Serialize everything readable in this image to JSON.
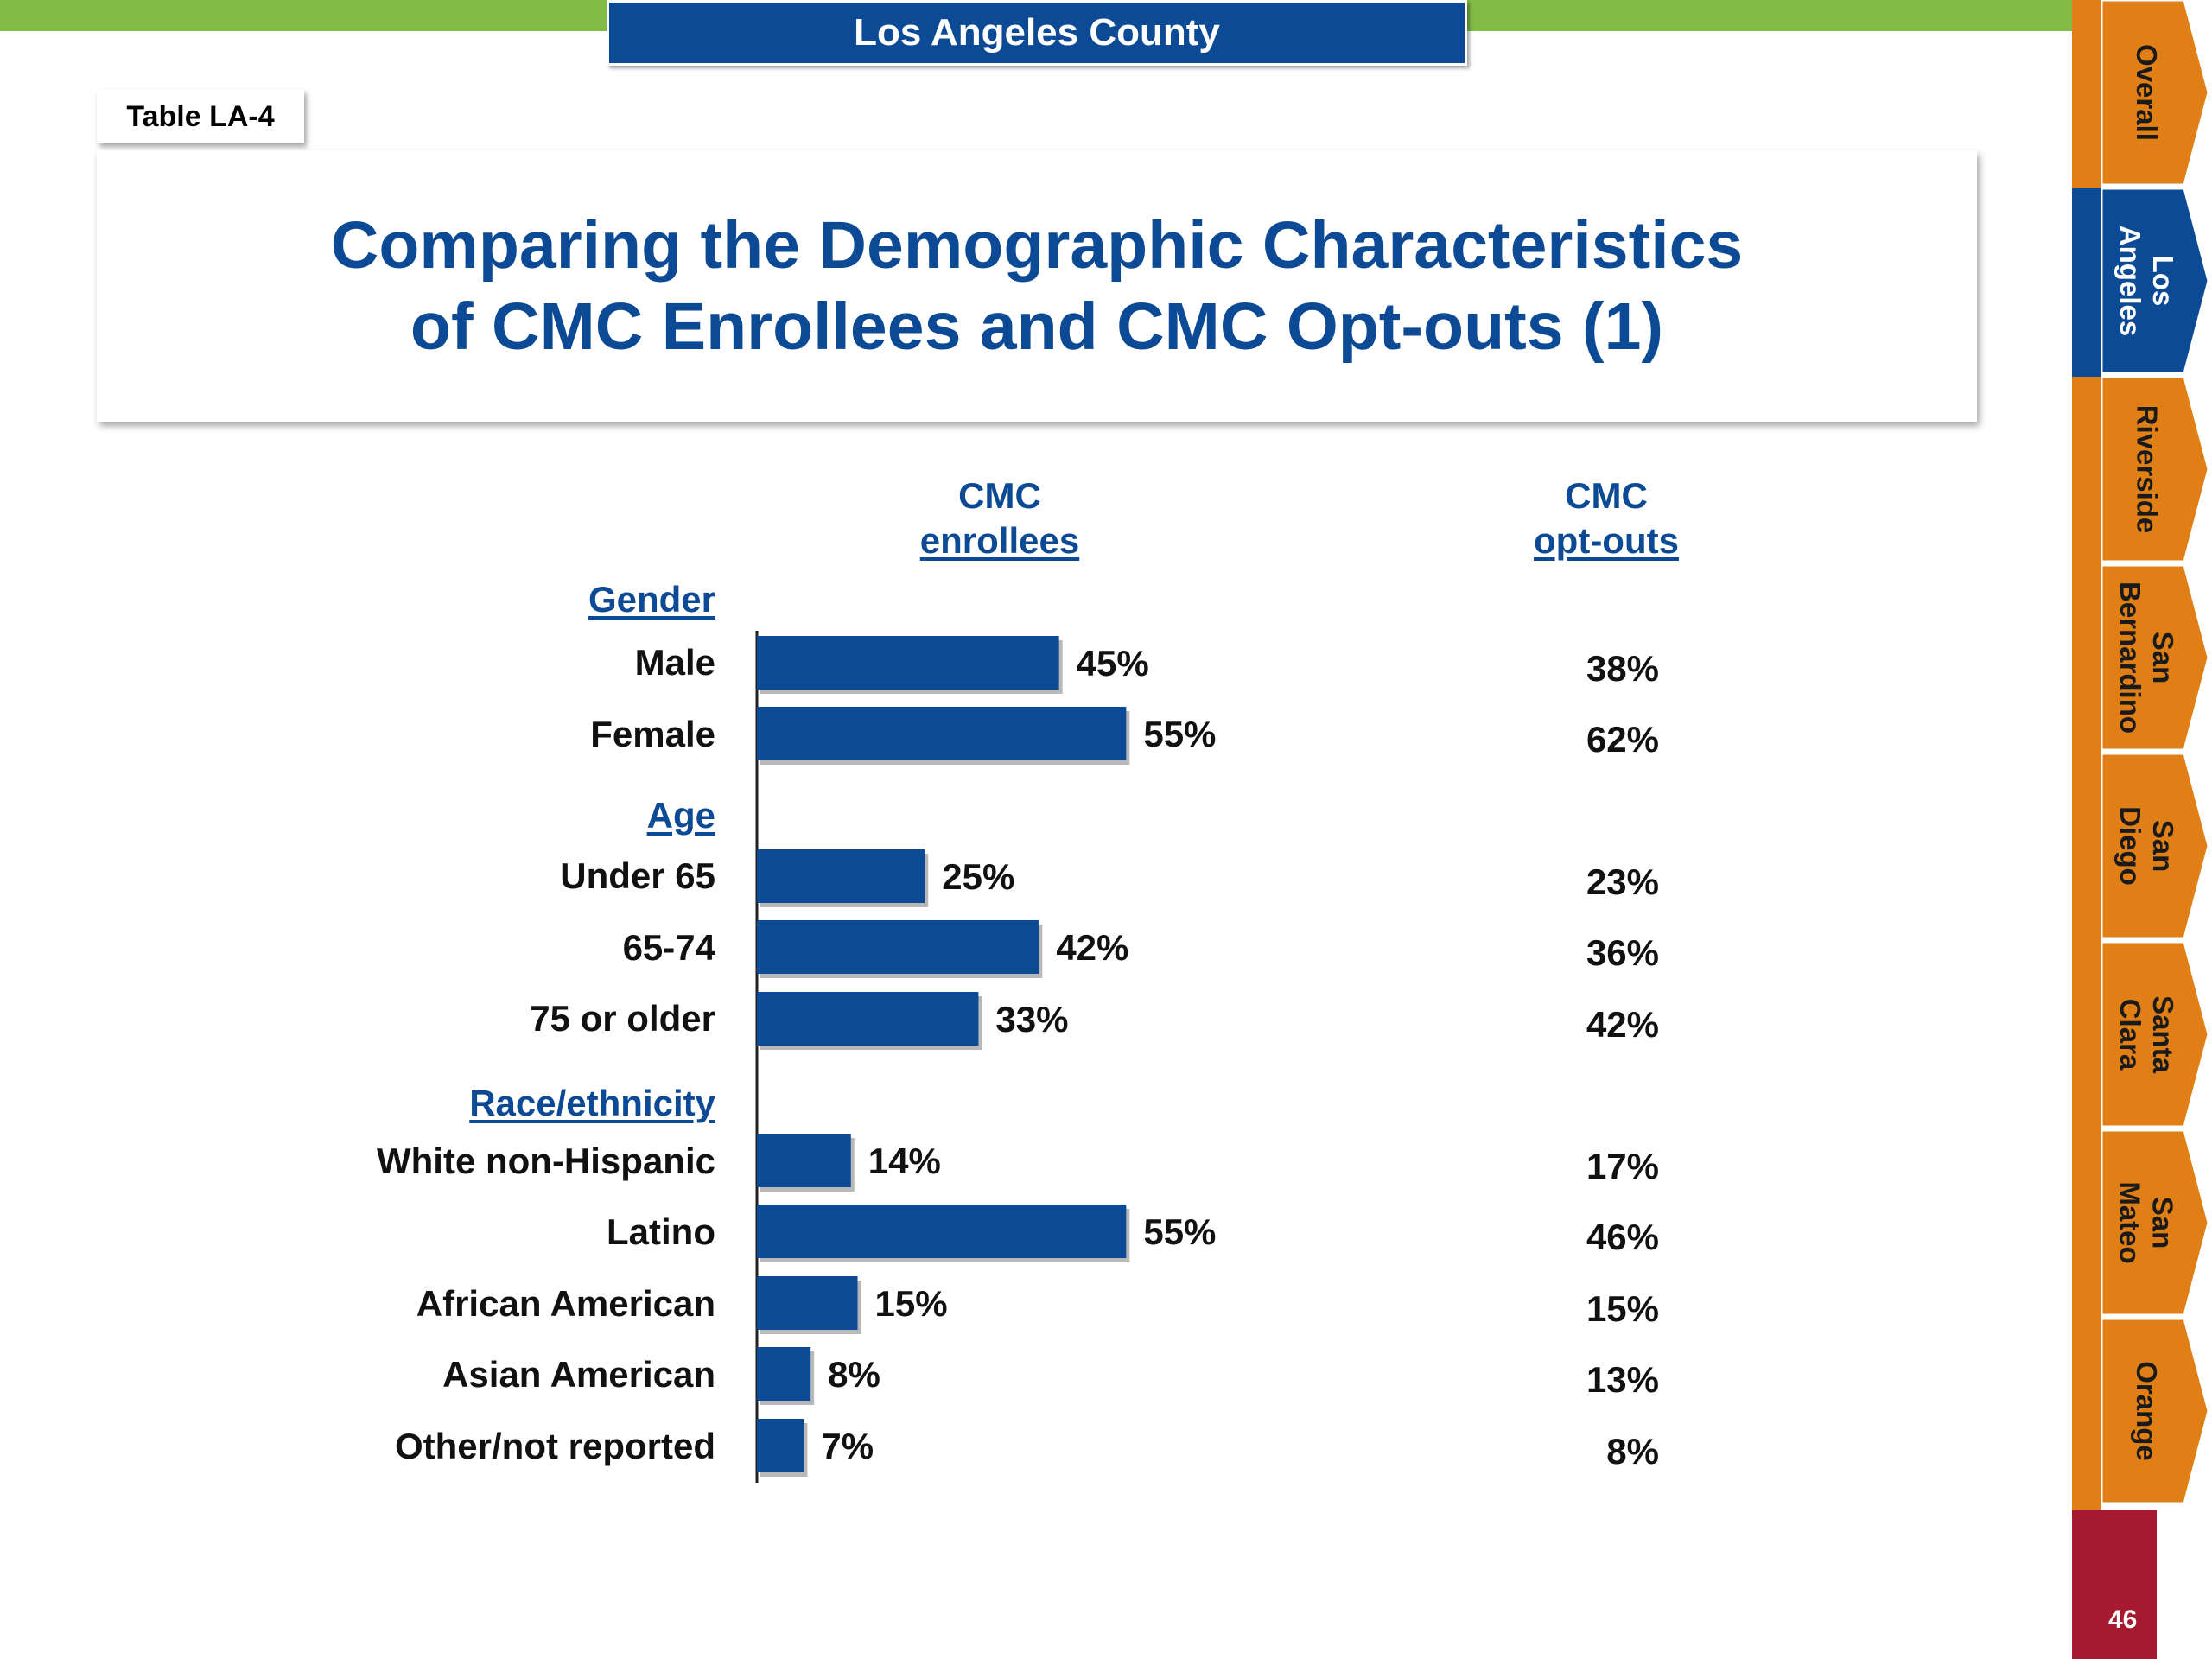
{
  "header": {
    "county": "Los Angeles County"
  },
  "table_label": "Table LA-4",
  "title": {
    "line1": "Comparing the Demographic Characteristics",
    "line2": "of CMC Enrollees and CMC Opt-outs (1)"
  },
  "columns": {
    "enrollees": {
      "line1": "CMC",
      "line2": "enrollees"
    },
    "optouts": {
      "line1": "CMC",
      "line2": "opt-outs"
    }
  },
  "groups": {
    "gender": "Gender",
    "age": "Age",
    "race": "Race/ethnicity"
  },
  "rows": [
    {
      "label": "Male",
      "enrollee": "45%",
      "optout": "38%"
    },
    {
      "label": "Female",
      "enrollee": "55%",
      "optout": "62%"
    },
    {
      "label": "Under 65",
      "enrollee": "25%",
      "optout": "23%"
    },
    {
      "label": "65-74",
      "enrollee": "42%",
      "optout": "36%"
    },
    {
      "label": "75 or older",
      "enrollee": "33%",
      "optout": "42%"
    },
    {
      "label": "White non-Hispanic",
      "enrollee": "14%",
      "optout": "17%"
    },
    {
      "label": "Latino",
      "enrollee": "55%",
      "optout": "46%"
    },
    {
      "label": "African American",
      "enrollee": "15%",
      "optout": "15%"
    },
    {
      "label": "Asian American",
      "enrollee": "8%",
      "optout": "13%"
    },
    {
      "label": "Other/not reported",
      "enrollee": "7%",
      "optout": "8%"
    }
  ],
  "chart_data": {
    "type": "bar",
    "orientation": "horizontal",
    "categories": [
      "Male",
      "Female",
      "Under 65",
      "65-74",
      "75 or older",
      "White non-Hispanic",
      "Latino",
      "African American",
      "Asian American",
      "Other/not reported"
    ],
    "series": [
      {
        "name": "CMC enrollees",
        "values": [
          45,
          55,
          25,
          42,
          33,
          14,
          55,
          15,
          8,
          7
        ]
      },
      {
        "name": "CMC opt-outs",
        "values": [
          38,
          62,
          23,
          36,
          42,
          17,
          46,
          15,
          13,
          8
        ],
        "shown_as": "text"
      }
    ],
    "groups": [
      {
        "name": "Gender",
        "categories": [
          "Male",
          "Female"
        ]
      },
      {
        "name": "Age",
        "categories": [
          "Under 65",
          "65-74",
          "75 or older"
        ]
      },
      {
        "name": "Race/ethnicity",
        "categories": [
          "White non-Hispanic",
          "Latino",
          "African American",
          "Asian American",
          "Other/not reported"
        ]
      }
    ],
    "unit": "%",
    "grid": false,
    "legend": "none",
    "bar_color": "#0d4a96"
  },
  "side_tabs": [
    {
      "label": "Overall",
      "active": false
    },
    {
      "label": "Los\nAngeles",
      "active": true
    },
    {
      "label": "Riverside",
      "active": false
    },
    {
      "label": "San\nBernardino",
      "active": false
    },
    {
      "label": "San\nDiego",
      "active": false
    },
    {
      "label": "Santa\nClara",
      "active": false
    },
    {
      "label": "San\nMateo",
      "active": false
    },
    {
      "label": "Orange",
      "active": false
    }
  ],
  "page_number": "46",
  "colors": {
    "brand_blue": "#0d4a96",
    "top_green": "#80bc46",
    "tab_orange": "#e07f16",
    "page_red": "#a6192e"
  }
}
